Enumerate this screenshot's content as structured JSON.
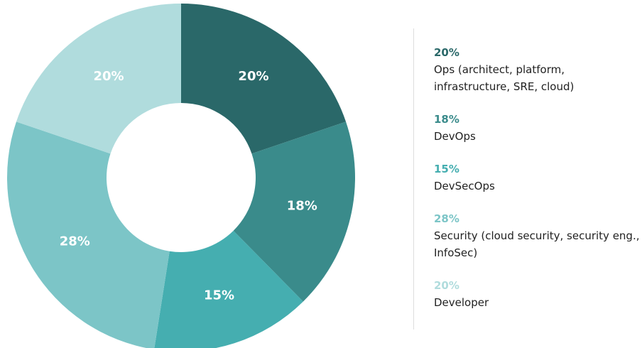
{
  "chart_data": {
    "type": "pie",
    "categories": [
      "Ops (architect, platform, infrastructure, SRE, cloud)",
      "DevOps",
      "DevSecOps",
      "Security (cloud security, security eng., InfoSec)",
      "Developer"
    ],
    "values": [
      20,
      18,
      15,
      28,
      20
    ],
    "value_labels": [
      "20%",
      "18%",
      "15%",
      "28%",
      "20%"
    ],
    "colors": [
      "#2a6869",
      "#3a8b8b",
      "#45aeb0",
      "#7cc5c7",
      "#b0dcdd"
    ]
  }
}
